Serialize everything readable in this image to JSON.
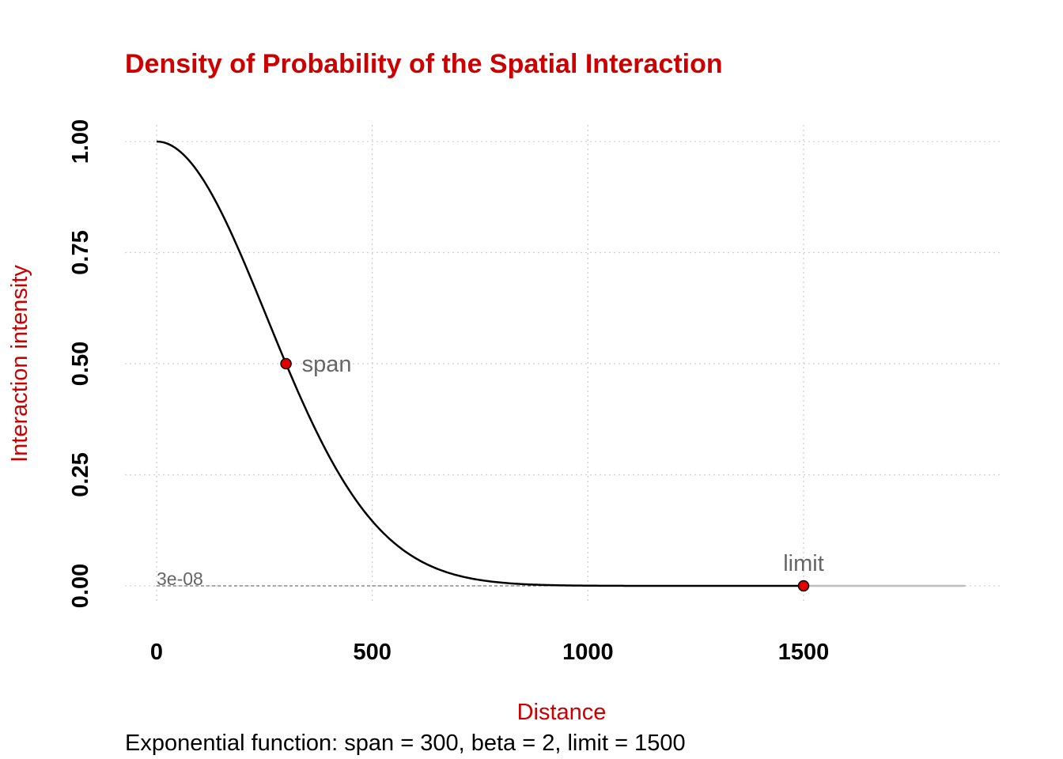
{
  "chart_data": {
    "type": "line",
    "title": "Density of Probability of the Spatial Interaction",
    "xlabel": "Distance",
    "ylabel": "Interaction intensity",
    "caption": "Exponential function: span = 300, beta = 2, limit = 1500",
    "xlim": [
      0,
      1875
    ],
    "ylim": [
      0,
      1
    ],
    "x_ticks": [
      0,
      500,
      1000,
      1500
    ],
    "x_tick_labels": [
      "0",
      "500",
      "1000",
      "1500"
    ],
    "y_ticks": [
      0,
      0.25,
      0.5,
      0.75,
      1
    ],
    "y_tick_labels": [
      "0.00",
      "0.25",
      "0.50",
      "0.75",
      "1.00"
    ],
    "grid": true,
    "function": {
      "kind": "exponential",
      "span": 300,
      "beta": 2,
      "limit": 1500
    },
    "series": [
      {
        "x": [
          0,
          50,
          100,
          150,
          200,
          250,
          300,
          350,
          400,
          450,
          500,
          550,
          600,
          650,
          700,
          750,
          800,
          850,
          900,
          950,
          1000,
          1100,
          1200,
          1300,
          1400,
          1500
        ],
        "values": [
          1.0,
          0.981,
          0.926,
          0.841,
          0.735,
          0.618,
          0.5,
          0.389,
          0.291,
          0.209,
          0.146,
          0.096,
          0.0625,
          0.0381,
          0.0225,
          0.0128,
          0.0069,
          0.0036,
          0.0018,
          0.0009,
          0.0004,
          0.0001,
          0.0,
          0.0,
          0.0,
          0.0
        ]
      }
    ],
    "extension": {
      "x": [
        1500,
        1875
      ],
      "y": [
        0,
        0
      ]
    },
    "points": [
      {
        "label": "span",
        "x": 300,
        "y": 0.5
      },
      {
        "label": "limit",
        "x": 1500,
        "y": 3e-08
      }
    ],
    "threshold_label": "3e-08",
    "threshold_value": 3e-08
  },
  "colors": {
    "accent": "#cc0000",
    "point_fill": "#e00000",
    "curve": "#000000",
    "extension": "#bebebe",
    "grid": "#d0d0d0",
    "annotation": "#666666"
  }
}
